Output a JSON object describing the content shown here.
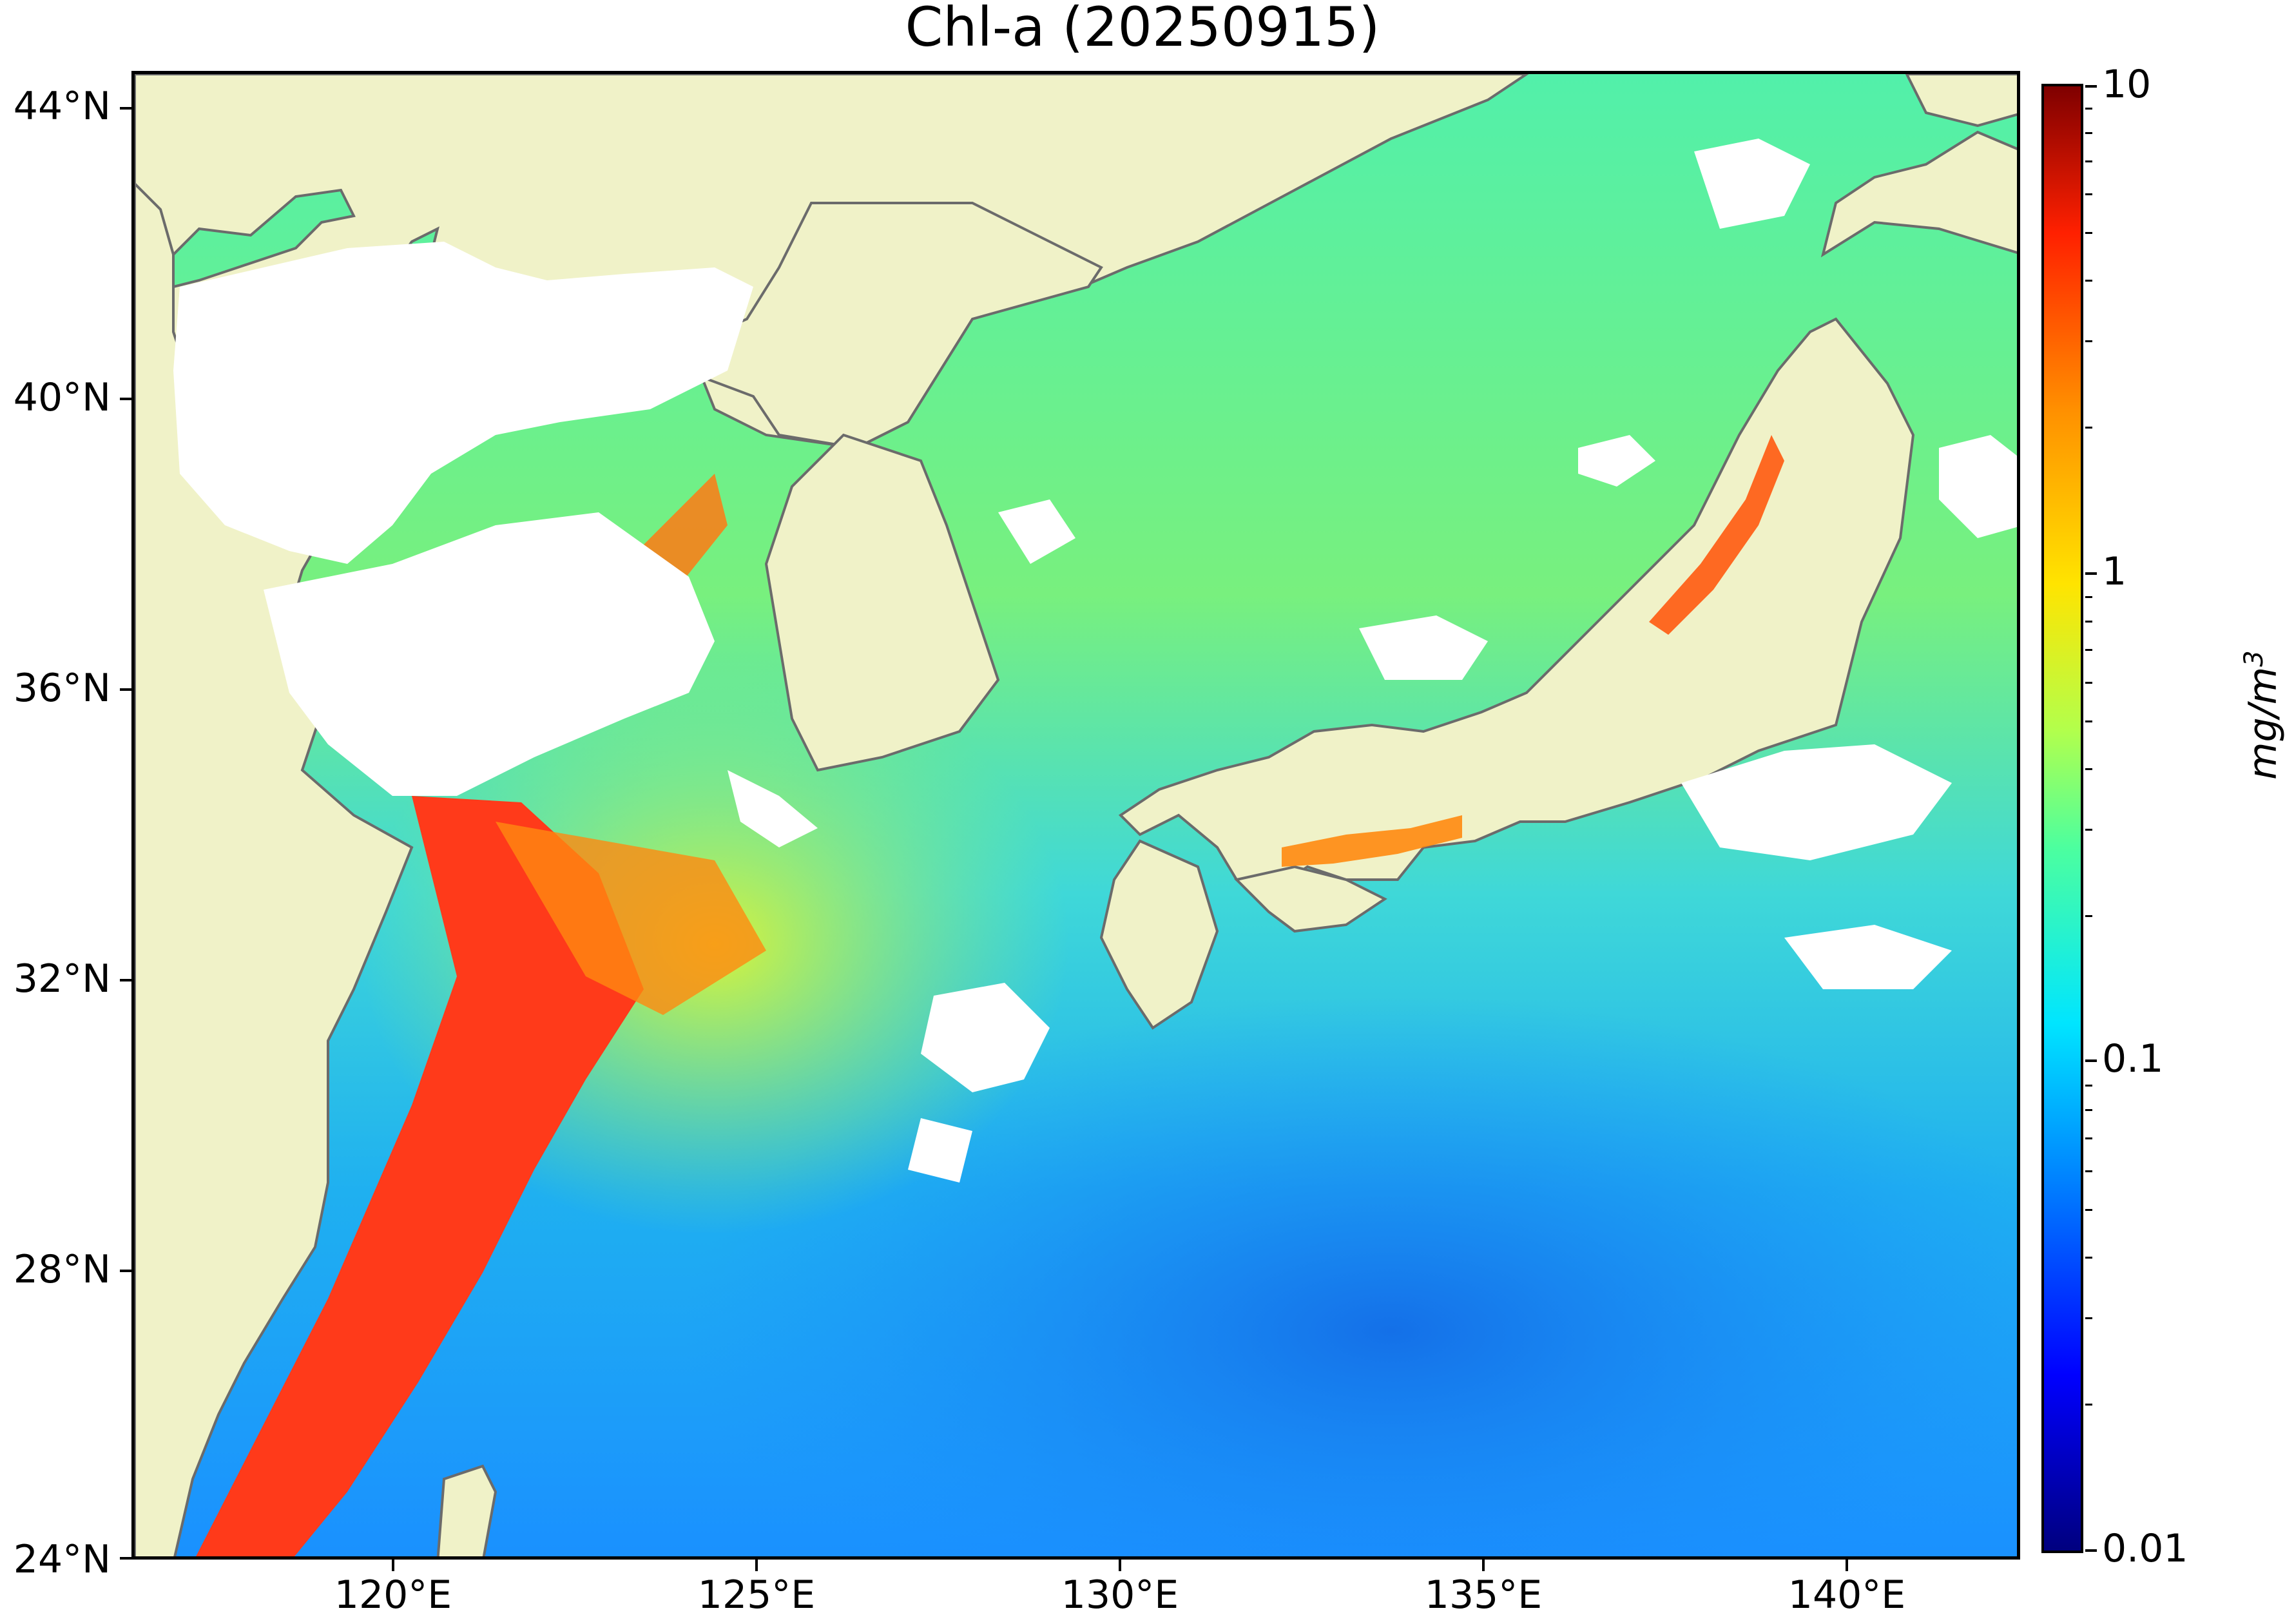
{
  "title": "Chl-a (20250915)",
  "map": {
    "lat_labels": [
      "44°N",
      "40°N",
      "36°N",
      "32°N",
      "28°N",
      "24°N"
    ],
    "lon_labels": [
      "120°E",
      "125°E",
      "130°E",
      "135°E",
      "140°E"
    ],
    "extent": {
      "lon_min": 117.0,
      "lon_max": 143.0,
      "lat_min": 24.0,
      "lat_max": 44.5
    },
    "colors": {
      "land": "#f0f2c8",
      "coast": "#6b6b6b",
      "no_data": "#ffffff"
    }
  },
  "colorbar": {
    "ticks": [
      "10",
      "1",
      "0.1",
      "0.01"
    ],
    "unit": "mg/m",
    "unit_sup": "3",
    "scale": "log",
    "range": [
      0.01,
      10
    ],
    "colormap": "jet"
  }
}
